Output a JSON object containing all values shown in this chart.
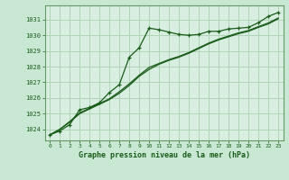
{
  "title": "Graphe pression niveau de la mer (hPa)",
  "background_color": "#c8e8d4",
  "plot_bg_color": "#d8eee0",
  "grid_color": "#b0d4b8",
  "line_color": "#1a5c1a",
  "border_color": "#669966",
  "xlim": [
    -0.5,
    23.5
  ],
  "ylim": [
    1023.3,
    1031.9
  ],
  "yticks": [
    1024,
    1025,
    1026,
    1027,
    1028,
    1029,
    1030,
    1031
  ],
  "xticks": [
    0,
    1,
    2,
    3,
    4,
    5,
    6,
    7,
    8,
    9,
    10,
    11,
    12,
    13,
    14,
    15,
    16,
    17,
    18,
    19,
    20,
    21,
    22,
    23
  ],
  "series1_x": [
    0,
    1,
    2,
    3,
    4,
    5,
    6,
    7,
    8,
    9,
    10,
    11,
    12,
    13,
    14,
    15,
    16,
    17,
    18,
    19,
    20,
    21,
    22,
    23
  ],
  "series1_y": [
    1023.65,
    1023.9,
    1024.3,
    1025.25,
    1025.4,
    1025.7,
    1026.35,
    1026.85,
    1028.6,
    1029.2,
    1030.45,
    1030.35,
    1030.2,
    1030.05,
    1030.0,
    1030.05,
    1030.25,
    1030.25,
    1030.4,
    1030.45,
    1030.5,
    1030.8,
    1031.2,
    1031.45
  ],
  "series2_x": [
    0,
    1,
    2,
    3,
    4,
    5,
    6,
    7,
    8,
    9,
    10,
    11,
    12,
    13,
    14,
    15,
    16,
    17,
    18,
    19,
    20,
    21,
    22,
    23
  ],
  "series2_y": [
    1023.65,
    1024.0,
    1024.5,
    1025.05,
    1025.35,
    1025.65,
    1025.95,
    1026.4,
    1026.9,
    1027.45,
    1027.95,
    1028.2,
    1028.45,
    1028.65,
    1028.9,
    1029.2,
    1029.5,
    1029.75,
    1029.95,
    1030.15,
    1030.3,
    1030.55,
    1030.78,
    1031.1
  ],
  "series3_x": [
    0,
    1,
    2,
    3,
    4,
    5,
    6,
    7,
    8,
    9,
    10,
    11,
    12,
    13,
    14,
    15,
    16,
    17,
    18,
    19,
    20,
    21,
    22,
    23
  ],
  "series3_y": [
    1023.65,
    1024.0,
    1024.45,
    1025.0,
    1025.3,
    1025.6,
    1025.9,
    1026.3,
    1026.8,
    1027.38,
    1027.82,
    1028.15,
    1028.4,
    1028.6,
    1028.85,
    1029.15,
    1029.45,
    1029.7,
    1029.9,
    1030.1,
    1030.25,
    1030.5,
    1030.72,
    1031.05
  ]
}
